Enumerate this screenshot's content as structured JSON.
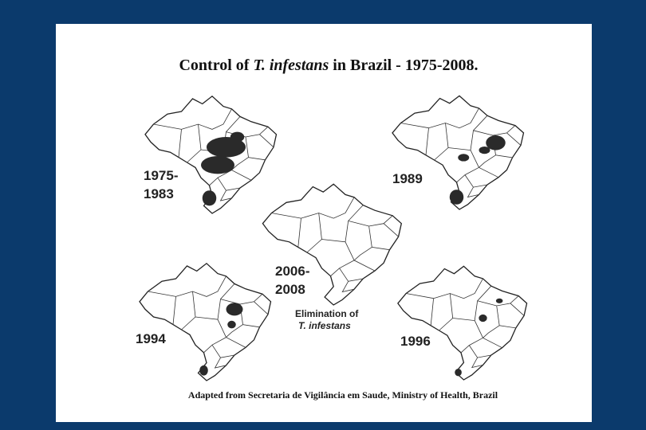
{
  "header": {
    "title_start": "Control of ",
    "title_italic": "T. infestans",
    "title_end": " in Brazil - 1975-2008."
  },
  "maps": [
    {
      "label": [
        "1975-",
        "1983"
      ]
    },
    {
      "label": [
        "1989"
      ]
    },
    {
      "label": [
        "2006-",
        "2008"
      ],
      "note": [
        "Elimination of",
        "T. infestans"
      ]
    },
    {
      "label": [
        "1994"
      ]
    },
    {
      "label": [
        "1996"
      ]
    }
  ],
  "caption": "Adapted from Secretaria de Vigilância em Saude, Ministry of Health, Brazil"
}
